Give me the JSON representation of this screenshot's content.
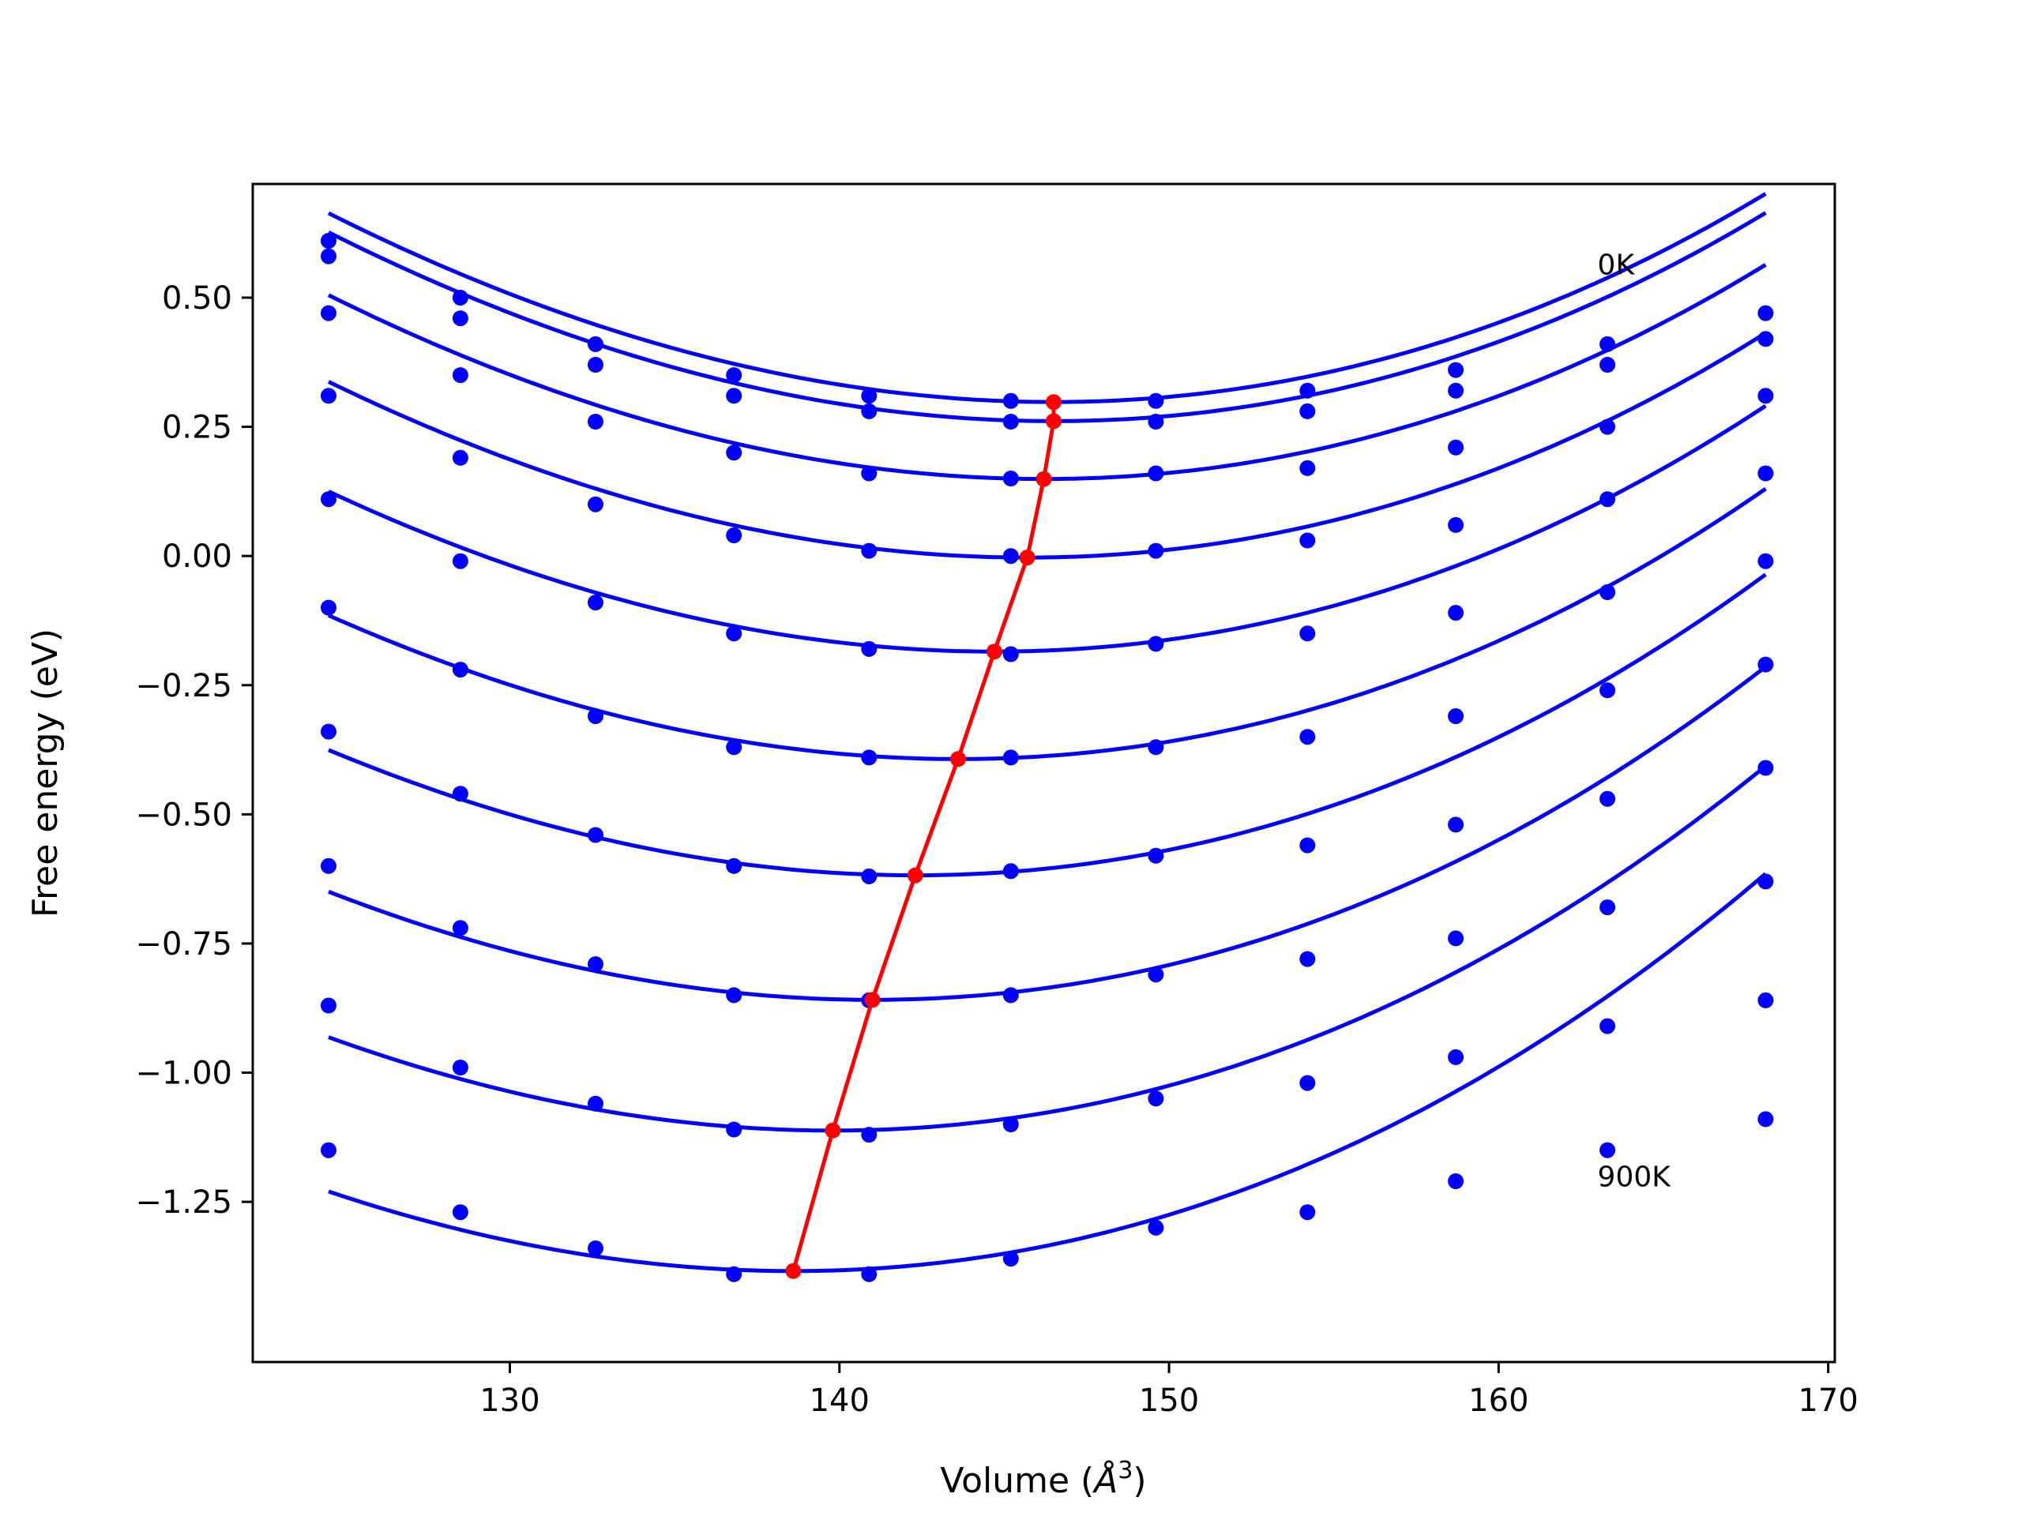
{
  "chart_data": {
    "type": "line",
    "title": "",
    "xlabel_main": "Volume (",
    "xlabel_unit": "Å",
    "xlabel_exp": "3",
    "xlabel_end": ")",
    "ylabel": "Free energy (eV)",
    "xlim": [
      122.2,
      170.2
    ],
    "ylim": [
      -1.56,
      0.72
    ],
    "xticks": [
      130,
      140,
      150,
      160,
      170
    ],
    "xtick_labels": [
      "130",
      "140",
      "150",
      "160",
      "170"
    ],
    "yticks": [
      0.5,
      0.25,
      0.0,
      -0.25,
      -0.5,
      -0.75,
      -1.0,
      -1.25
    ],
    "ytick_labels": [
      "0.50",
      "0.25",
      "0.00",
      "−0.25",
      "−0.50",
      "−0.75",
      "−1.00",
      "−1.25"
    ],
    "grid": false,
    "annotations": [
      {
        "text": "0K",
        "x": 163.0,
        "y": 0.545
      },
      {
        "text": "900K",
        "x": 163.0,
        "y": -1.22
      }
    ],
    "colors": {
      "curves": "#0000ff",
      "minima": "#ff0000",
      "axes": "#000000"
    },
    "x": [
      124.5,
      128.5,
      132.6,
      136.8,
      140.9,
      145.2,
      149.6,
      154.2,
      158.7,
      163.3,
      168.1
    ],
    "series": [
      {
        "points": [
          0.61,
          0.5,
          0.41,
          0.35,
          0.31,
          0.3,
          0.3,
          0.32,
          0.36,
          0.41,
          0.47
        ],
        "fit": {
          "v0": 146.5,
          "e0": 0.298,
          "a": 0.00081,
          "b": 2.5e-06
        }
      },
      {
        "points": [
          0.58,
          0.46,
          0.37,
          0.31,
          0.28,
          0.26,
          0.26,
          0.28,
          0.32,
          0.37,
          0.42
        ],
        "fit": {
          "v0": 146.5,
          "e0": 0.261,
          "a": 0.00081,
          "b": 2.5e-06
        }
      },
      {
        "points": [
          0.47,
          0.35,
          0.26,
          0.2,
          0.16,
          0.15,
          0.16,
          0.17,
          0.21,
          0.25,
          0.31
        ],
        "fit": {
          "v0": 146.2,
          "e0": 0.149,
          "a": 0.00081,
          "b": 2.5e-06
        }
      },
      {
        "points": [
          0.31,
          0.19,
          0.1,
          0.04,
          0.01,
          -0.0,
          0.01,
          0.03,
          0.06,
          0.11,
          0.16
        ],
        "fit": {
          "v0": 145.7,
          "e0": -0.003,
          "a": 0.00081,
          "b": 2.5e-06
        }
      },
      {
        "points": [
          0.11,
          -0.01,
          -0.09,
          -0.15,
          -0.18,
          -0.19,
          -0.17,
          -0.15,
          -0.11,
          -0.07,
          -0.01
        ],
        "fit": {
          "v0": 144.7,
          "e0": -0.185,
          "a": 0.00081,
          "b": 2.5e-06
        }
      },
      {
        "points": [
          -0.1,
          -0.22,
          -0.31,
          -0.37,
          -0.39,
          -0.39,
          -0.37,
          -0.35,
          -0.31,
          -0.26,
          -0.21
        ],
        "fit": {
          "v0": 143.6,
          "e0": -0.393,
          "a": 0.00081,
          "b": 2.5e-06
        }
      },
      {
        "points": [
          -0.34,
          -0.46,
          -0.54,
          -0.6,
          -0.62,
          -0.61,
          -0.58,
          -0.56,
          -0.52,
          -0.47,
          -0.41
        ],
        "fit": {
          "v0": 142.3,
          "e0": -0.618,
          "a": 0.00081,
          "b": 2.5e-06
        }
      },
      {
        "points": [
          -0.6,
          -0.72,
          -0.79,
          -0.85,
          -0.86,
          -0.85,
          -0.81,
          -0.78,
          -0.74,
          -0.68,
          -0.63
        ],
        "fit": {
          "v0": 141.0,
          "e0": -0.859,
          "a": 0.00081,
          "b": 2.5e-06
        }
      },
      {
        "points": [
          -0.87,
          -0.99,
          -1.06,
          -1.11,
          -1.12,
          -1.1,
          -1.05,
          -1.02,
          -0.97,
          -0.91,
          -0.86
        ],
        "fit": {
          "v0": 139.8,
          "e0": -1.112,
          "a": 0.00081,
          "b": 2.5e-06
        }
      },
      {
        "points": [
          -1.15,
          -1.27,
          -1.34,
          -1.39,
          -1.39,
          -1.36,
          -1.3,
          -1.27,
          -1.21,
          -1.15,
          -1.09
        ],
        "fit": {
          "v0": 138.6,
          "e0": -1.384,
          "a": 0.00081,
          "b": 2.5e-06
        }
      }
    ],
    "minima": {
      "x": [
        146.5,
        146.5,
        146.2,
        145.7,
        144.7,
        143.6,
        142.3,
        141.0,
        139.8,
        138.6
      ],
      "y": [
        0.298,
        0.261,
        0.149,
        -0.003,
        -0.185,
        -0.393,
        -0.618,
        -0.859,
        -1.112,
        -1.384
      ]
    }
  }
}
